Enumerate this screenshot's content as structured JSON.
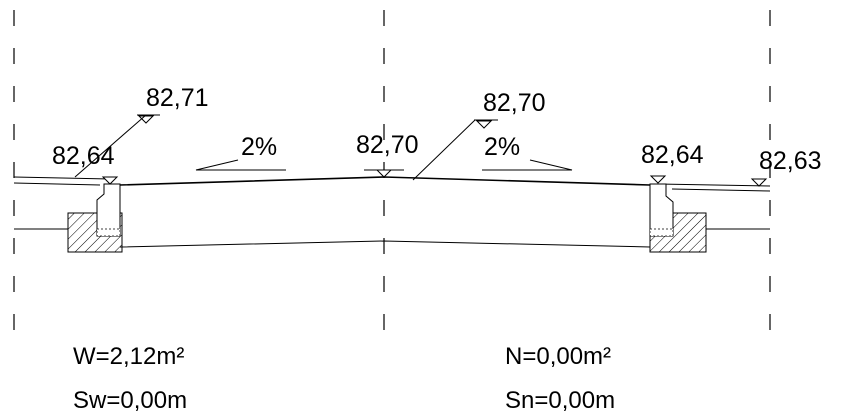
{
  "elevations": {
    "left_top": "82,71",
    "left_edge": "82,64",
    "center": "82,70",
    "right_top": "82,70",
    "right_curb": "82,64",
    "right_edge": "82,63"
  },
  "slopes": {
    "left": "2%",
    "right": "2%"
  },
  "areas": {
    "w": "W=2,12m²",
    "sw": "Sw=0,00m",
    "n": "N=0,00m²",
    "sn": "Sn=0,00m"
  },
  "colors": {
    "line": "#000000",
    "background": "#ffffff"
  }
}
